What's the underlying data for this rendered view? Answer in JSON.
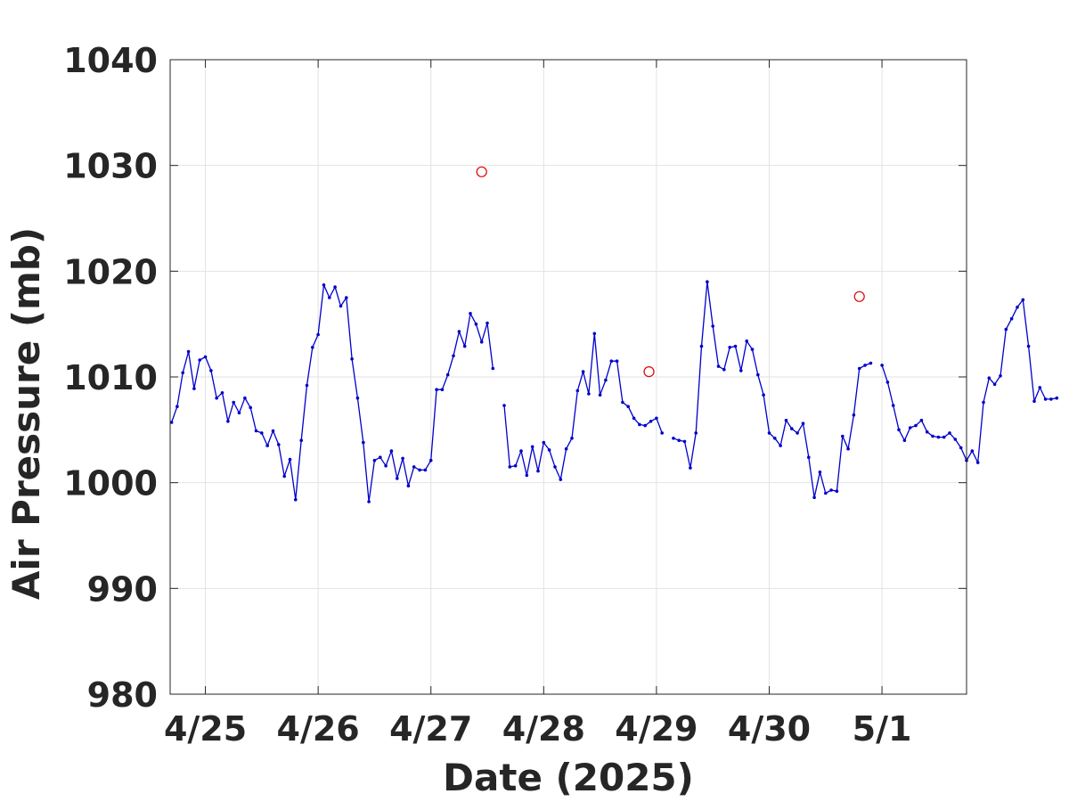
{
  "chart_data": {
    "type": "line",
    "title": "",
    "xlabel": "Date (2025)",
    "ylabel": "Air Pressure (mb)",
    "ylim": [
      980,
      1040
    ],
    "xlim": [
      "2025-04-24 16:30",
      "2025-05-01 18:00"
    ],
    "grid": true,
    "legend": "none",
    "x_tick_labels": [
      "4/25",
      "4/26",
      "4/27",
      "4/28",
      "4/29",
      "4/30",
      "5/1"
    ],
    "x_tick_dates": [
      "2025-04-25 00:00",
      "2025-04-26 00:00",
      "2025-04-27 00:00",
      "2025-04-28 00:00",
      "2025-04-29 00:00",
      "2025-04-30 00:00",
      "2025-05-01 00:00"
    ],
    "y_ticks": [
      980,
      990,
      1000,
      1010,
      1020,
      1030,
      1040
    ],
    "series": [
      {
        "type": "line",
        "color": "#0000cc",
        "marker": "dot",
        "points": [
          [
            "2025-04-24 16:48",
            1005.7
          ],
          [
            "2025-04-24 18:00",
            1007.2
          ],
          [
            "2025-04-24 19:12",
            1010.4
          ],
          [
            "2025-04-24 20:24",
            1012.4
          ],
          [
            "2025-04-24 21:36",
            1008.9
          ],
          [
            "2025-04-24 22:48",
            1011.6
          ],
          [
            "2025-04-25 00:00",
            1011.9
          ],
          [
            "2025-04-25 01:12",
            1010.6
          ],
          [
            "2025-04-25 02:24",
            1008.0
          ],
          [
            "2025-04-25 03:36",
            1008.5
          ],
          [
            "2025-04-25 04:48",
            1005.8
          ],
          [
            "2025-04-25 06:00",
            1007.6
          ],
          [
            "2025-04-25 07:12",
            1006.6
          ],
          [
            "2025-04-25 08:24",
            1008.0
          ],
          [
            "2025-04-25 09:36",
            1007.1
          ],
          [
            "2025-04-25 10:48",
            1004.9
          ],
          [
            "2025-04-25 12:00",
            1004.7
          ],
          [
            "2025-04-25 13:12",
            1003.5
          ],
          [
            "2025-04-25 14:24",
            1004.9
          ],
          [
            "2025-04-25 15:36",
            1003.6
          ],
          [
            "2025-04-25 16:48",
            1000.6
          ],
          [
            "2025-04-25 18:00",
            1002.2
          ],
          [
            "2025-04-25 19:12",
            998.4
          ],
          [
            "2025-04-25 20:24",
            1004.0
          ],
          [
            "2025-04-25 21:36",
            1009.2
          ],
          [
            "2025-04-25 22:48",
            1012.8
          ],
          [
            "2025-04-26 00:00",
            1014.0
          ],
          [
            "2025-04-26 01:12",
            1018.7
          ],
          [
            "2025-04-26 02:24",
            1017.5
          ],
          [
            "2025-04-26 03:36",
            1018.5
          ],
          [
            "2025-04-26 04:48",
            1016.7
          ],
          [
            "2025-04-26 06:00",
            1017.5
          ],
          [
            "2025-04-26 07:12",
            1011.7
          ],
          [
            "2025-04-26 08:24",
            1008.0
          ],
          [
            "2025-04-26 09:36",
            1003.8
          ],
          [
            "2025-04-26 10:48",
            998.2
          ],
          [
            "2025-04-26 12:00",
            1002.1
          ],
          [
            "2025-04-26 13:12",
            1002.4
          ],
          [
            "2025-04-26 14:24",
            1001.6
          ],
          [
            "2025-04-26 15:36",
            1003.0
          ],
          [
            "2025-04-26 16:48",
            1000.4
          ],
          [
            "2025-04-26 18:00",
            1002.3
          ],
          [
            "2025-04-26 19:12",
            999.7
          ],
          [
            "2025-04-26 20:24",
            1001.5
          ],
          [
            "2025-04-26 21:36",
            1001.2
          ],
          [
            "2025-04-26 22:48",
            1001.2
          ],
          [
            "2025-04-27 00:00",
            1002.1
          ],
          [
            "2025-04-27 01:12",
            1008.8
          ],
          [
            "2025-04-27 02:24",
            1008.8
          ],
          [
            "2025-04-27 03:36",
            1010.2
          ],
          [
            "2025-04-27 04:48",
            1012.0
          ],
          [
            "2025-04-27 06:00",
            1014.3
          ],
          [
            "2025-04-27 07:12",
            1012.9
          ],
          [
            "2025-04-27 08:24",
            1016.0
          ],
          [
            "2025-04-27 09:36",
            1015.0
          ],
          [
            "2025-04-27 10:48",
            1013.3
          ],
          [
            "2025-04-27 12:00",
            1015.1
          ],
          [
            "2025-04-27 13:12",
            1010.8
          ],
          null,
          [
            "2025-04-27 15:36",
            1007.3
          ],
          [
            "2025-04-27 16:48",
            1001.5
          ],
          [
            "2025-04-27 18:00",
            1001.6
          ],
          [
            "2025-04-27 19:12",
            1003.0
          ],
          [
            "2025-04-27 20:24",
            1000.7
          ],
          [
            "2025-04-27 21:36",
            1003.4
          ],
          [
            "2025-04-27 22:48",
            1001.1
          ],
          [
            "2025-04-28 00:00",
            1003.8
          ],
          [
            "2025-04-28 01:12",
            1003.1
          ],
          [
            "2025-04-28 02:24",
            1001.5
          ],
          [
            "2025-04-28 03:36",
            1000.3
          ],
          [
            "2025-04-28 04:48",
            1003.2
          ],
          [
            "2025-04-28 06:00",
            1004.2
          ],
          [
            "2025-04-28 07:12",
            1008.7
          ],
          [
            "2025-04-28 08:24",
            1010.5
          ],
          [
            "2025-04-28 09:36",
            1008.4
          ],
          [
            "2025-04-28 10:48",
            1014.1
          ],
          [
            "2025-04-28 12:00",
            1008.3
          ],
          [
            "2025-04-28 13:12",
            1009.7
          ],
          [
            "2025-04-28 14:24",
            1011.5
          ],
          [
            "2025-04-28 15:36",
            1011.5
          ],
          [
            "2025-04-28 16:48",
            1007.6
          ],
          [
            "2025-04-28 18:00",
            1007.2
          ],
          [
            "2025-04-28 19:12",
            1006.1
          ],
          [
            "2025-04-28 20:24",
            1005.5
          ],
          [
            "2025-04-28 21:36",
            1005.4
          ],
          [
            "2025-04-28 22:48",
            1005.8
          ],
          [
            "2025-04-29 00:00",
            1006.1
          ],
          [
            "2025-04-29 01:12",
            1004.7
          ],
          null,
          [
            "2025-04-29 03:36",
            1004.2
          ],
          [
            "2025-04-29 04:48",
            1004.0
          ],
          [
            "2025-04-29 06:00",
            1003.9
          ],
          [
            "2025-04-29 07:12",
            1001.4
          ],
          [
            "2025-04-29 08:24",
            1004.7
          ],
          [
            "2025-04-29 09:36",
            1012.9
          ],
          [
            "2025-04-29 10:48",
            1019.0
          ],
          [
            "2025-04-29 12:00",
            1014.8
          ],
          [
            "2025-04-29 13:12",
            1011.0
          ],
          [
            "2025-04-29 14:24",
            1010.7
          ],
          [
            "2025-04-29 15:36",
            1012.8
          ],
          [
            "2025-04-29 16:48",
            1012.9
          ],
          [
            "2025-04-29 18:00",
            1010.6
          ],
          [
            "2025-04-29 19:12",
            1013.4
          ],
          [
            "2025-04-29 20:24",
            1012.6
          ],
          [
            "2025-04-29 21:36",
            1010.2
          ],
          [
            "2025-04-29 22:48",
            1008.3
          ],
          [
            "2025-04-30 00:00",
            1004.7
          ],
          [
            "2025-04-30 01:12",
            1004.2
          ],
          [
            "2025-04-30 02:24",
            1003.5
          ],
          [
            "2025-04-30 03:36",
            1005.9
          ],
          [
            "2025-04-30 04:48",
            1005.1
          ],
          [
            "2025-04-30 06:00",
            1004.7
          ],
          [
            "2025-04-30 07:12",
            1005.6
          ],
          [
            "2025-04-30 08:24",
            1002.4
          ],
          [
            "2025-04-30 09:36",
            998.6
          ],
          [
            "2025-04-30 10:48",
            1001.0
          ],
          [
            "2025-04-30 12:00",
            999.0
          ],
          [
            "2025-04-30 13:12",
            999.3
          ],
          [
            "2025-04-30 14:24",
            999.2
          ],
          [
            "2025-04-30 15:36",
            1004.4
          ],
          [
            "2025-04-30 16:48",
            1003.2
          ],
          [
            "2025-04-30 18:00",
            1006.4
          ],
          [
            "2025-04-30 19:12",
            1010.8
          ],
          [
            "2025-04-30 20:24",
            1011.1
          ],
          [
            "2025-04-30 21:36",
            1011.3
          ],
          null,
          [
            "2025-05-01 00:00",
            1011.1
          ],
          [
            "2025-05-01 01:12",
            1009.5
          ],
          [
            "2025-05-01 02:24",
            1007.3
          ],
          [
            "2025-05-01 03:36",
            1005.0
          ],
          [
            "2025-05-01 04:48",
            1004.0
          ],
          [
            "2025-05-01 06:00",
            1005.2
          ],
          [
            "2025-05-01 07:12",
            1005.4
          ],
          [
            "2025-05-01 08:24",
            1005.9
          ],
          [
            "2025-05-01 09:36",
            1004.8
          ],
          [
            "2025-05-01 10:48",
            1004.4
          ],
          [
            "2025-05-01 12:00",
            1004.3
          ],
          [
            "2025-05-01 13:12",
            1004.3
          ],
          [
            "2025-05-01 14:24",
            1004.7
          ],
          [
            "2025-05-01 15:36",
            1004.1
          ],
          [
            "2025-05-01 16:48",
            1003.3
          ],
          [
            "2025-05-01 18:00",
            1002.1
          ],
          [
            "2025-05-01 19:12",
            1003.0
          ],
          [
            "2025-05-01 20:24",
            1001.9
          ],
          [
            "2025-05-01 21:36",
            1007.6
          ],
          [
            "2025-05-01 22:48",
            1009.9
          ],
          [
            "2025-05-02 00:00",
            1009.3
          ],
          [
            "2025-05-02 01:12",
            1010.1
          ],
          [
            "2025-05-02 02:24",
            1014.5
          ],
          [
            "2025-05-02 03:36",
            1015.5
          ],
          [
            "2025-05-02 04:48",
            1016.6
          ],
          [
            "2025-05-02 06:00",
            1017.3
          ],
          [
            "2025-05-02 07:12",
            1012.9
          ],
          [
            "2025-05-02 08:24",
            1007.7
          ],
          [
            "2025-05-02 09:36",
            1009.0
          ],
          [
            "2025-05-02 10:48",
            1007.9
          ],
          [
            "2025-05-02 12:00",
            1007.9
          ],
          [
            "2025-05-02 13:12",
            1008.0
          ]
        ]
      },
      {
        "type": "scatter",
        "color": "#dd0000",
        "marker": "open-circle",
        "points": [
          [
            "2025-04-27 10:48",
            1029.4
          ],
          [
            "2025-04-28 22:24",
            1010.5
          ],
          [
            "2025-04-30 19:12",
            1017.6
          ]
        ]
      }
    ]
  }
}
